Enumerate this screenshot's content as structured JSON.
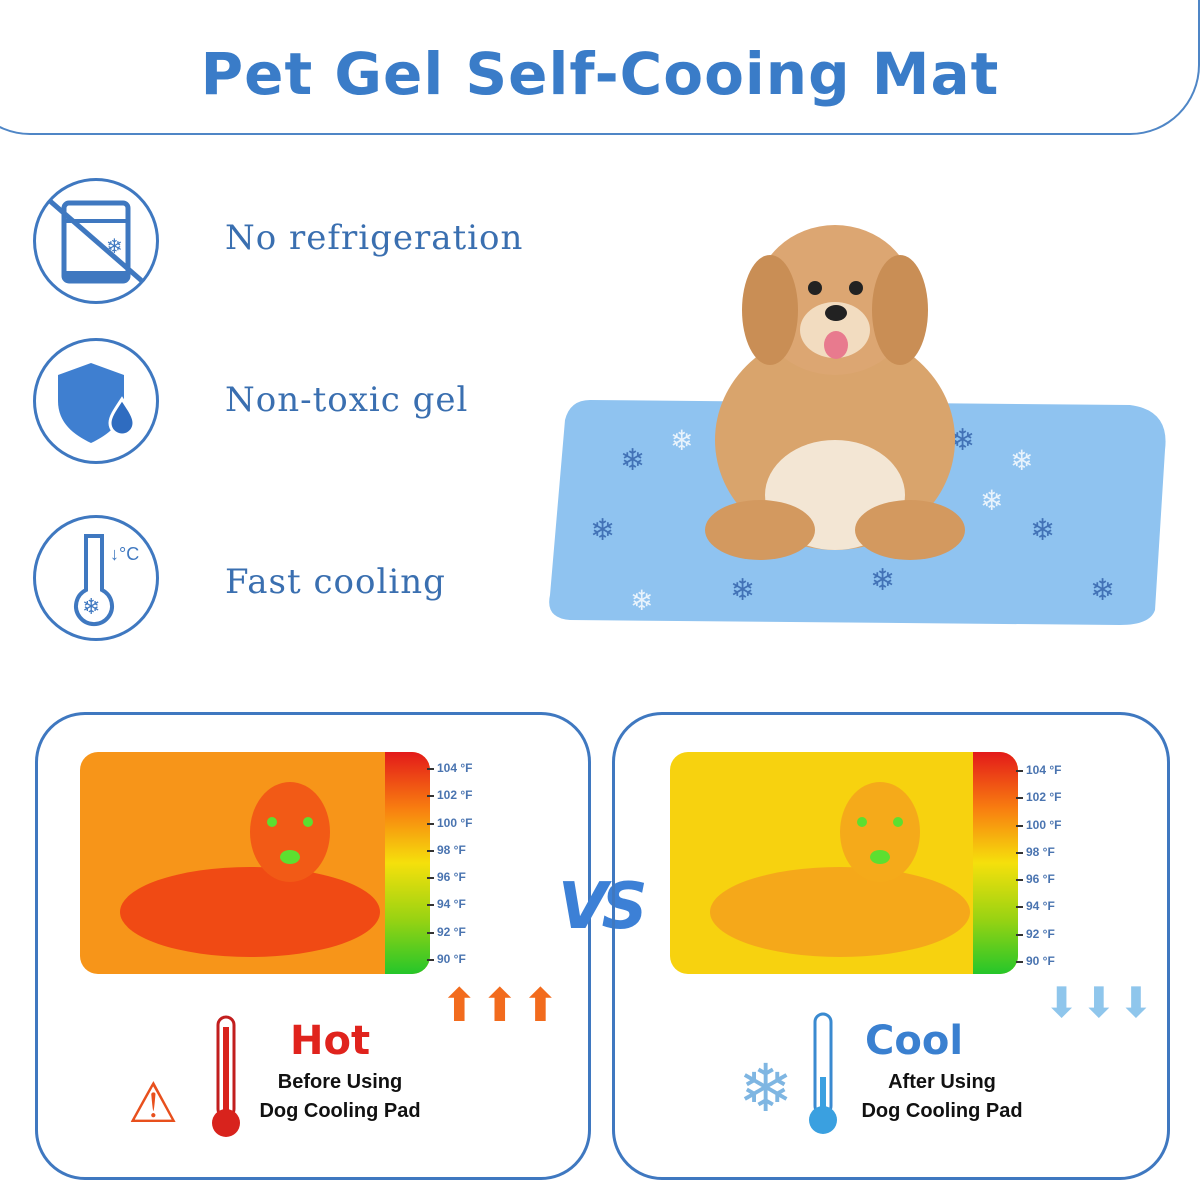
{
  "title": "Pet Gel Self-Cooing Mat",
  "features": [
    {
      "label": "No refrigeration",
      "icon": "no-fridge-icon"
    },
    {
      "label": "Non-toxic gel",
      "icon": "shield-drop-icon"
    },
    {
      "label": "Fast cooling",
      "icon": "thermometer-snowflake-icon"
    }
  ],
  "scale_labels": [
    "104 °F",
    "102 °F",
    "100 °F",
    "98 °F",
    "96 °F",
    "94 °F",
    "92 °F",
    "90 °F"
  ],
  "before": {
    "heading": "Hot",
    "line1": "Before Using",
    "line2": "Dog Cooling Pad",
    "color": "#e0231d"
  },
  "after": {
    "heading": "Cool",
    "line1": "After Using",
    "line2": "Dog Cooling Pad",
    "color": "#3a80d0"
  },
  "vs": "VS",
  "colors": {
    "accent": "#3a7cc8",
    "mat": "#8fc3f0"
  }
}
